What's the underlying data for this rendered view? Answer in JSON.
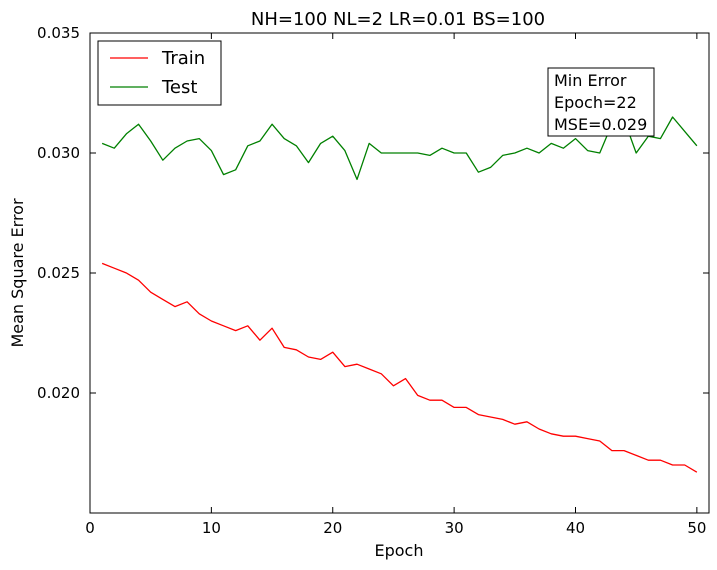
{
  "chart_data": {
    "type": "line",
    "title": "NH=100 NL=2 LR=0.01 BS=100",
    "xlabel": "Epoch",
    "ylabel": "Mean Square Error",
    "xlim": [
      0,
      51
    ],
    "ylim": [
      0.015,
      0.035
    ],
    "xticks": [
      0,
      10,
      20,
      30,
      40,
      50
    ],
    "xtick_labels": [
      "0",
      "10",
      "20",
      "30",
      "40",
      "50"
    ],
    "yticks": [
      0.02,
      0.025,
      0.03,
      0.035
    ],
    "ytick_labels": [
      "0.020",
      "0.025",
      "0.030",
      "0.035"
    ],
    "grid": false,
    "legend": "top-left",
    "x": [
      1,
      2,
      3,
      4,
      5,
      6,
      7,
      8,
      9,
      10,
      11,
      12,
      13,
      14,
      15,
      16,
      17,
      18,
      19,
      20,
      21,
      22,
      23,
      24,
      25,
      26,
      27,
      28,
      29,
      30,
      31,
      32,
      33,
      34,
      35,
      36,
      37,
      38,
      39,
      40,
      41,
      42,
      43,
      44,
      45,
      46,
      47,
      48,
      49,
      50
    ],
    "series": [
      {
        "name": "Train",
        "color": "#ff0000",
        "values": [
          0.0254,
          0.0252,
          0.025,
          0.0247,
          0.0242,
          0.0239,
          0.0236,
          0.0238,
          0.0233,
          0.023,
          0.0228,
          0.0226,
          0.0228,
          0.0222,
          0.0227,
          0.0219,
          0.0218,
          0.0215,
          0.0214,
          0.0217,
          0.0211,
          0.0212,
          0.021,
          0.0208,
          0.0203,
          0.0206,
          0.0199,
          0.0197,
          0.0197,
          0.0194,
          0.0194,
          0.0191,
          0.019,
          0.0189,
          0.0187,
          0.0188,
          0.0185,
          0.0183,
          0.0182,
          0.0182,
          0.0181,
          0.018,
          0.0176,
          0.0176,
          0.0174,
          0.0172,
          0.0172,
          0.017,
          0.017,
          0.0167
        ]
      },
      {
        "name": "Test",
        "color": "#008000",
        "values": [
          0.0304,
          0.0302,
          0.0308,
          0.0312,
          0.0305,
          0.0297,
          0.0302,
          0.0305,
          0.0306,
          0.0301,
          0.0291,
          0.0293,
          0.0303,
          0.0305,
          0.0312,
          0.0306,
          0.0303,
          0.0296,
          0.0304,
          0.0307,
          0.0301,
          0.0289,
          0.0304,
          0.03,
          0.03,
          0.03,
          0.03,
          0.0299,
          0.0302,
          0.03,
          0.03,
          0.0292,
          0.0294,
          0.0299,
          0.03,
          0.0302,
          0.03,
          0.0304,
          0.0302,
          0.0306,
          0.0301,
          0.03,
          0.0312,
          0.0314,
          0.03,
          0.0307,
          0.0306,
          0.0315,
          0.0309,
          0.0303
        ]
      }
    ],
    "annotation": {
      "lines": [
        "Min Error",
        "Epoch=22",
        "MSE=0.029"
      ]
    }
  }
}
